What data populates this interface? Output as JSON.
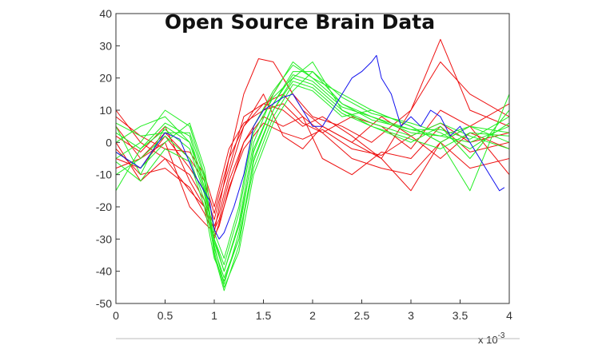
{
  "chart_data": {
    "type": "line",
    "title": "Open Source Brain Data",
    "xlabel": "",
    "ylabel": "",
    "x_multiplier_label": "x 10",
    "x_multiplier_exponent": "-3",
    "xlim": [
      0,
      4
    ],
    "ylim": [
      -50,
      40
    ],
    "x_ticks": [
      0,
      0.5,
      1,
      1.5,
      2,
      2.5,
      3,
      3.5,
      4
    ],
    "x_tick_labels": [
      "0",
      "0.5",
      "1",
      "1.5",
      "2",
      "2.5",
      "3",
      "3.5",
      "4"
    ],
    "y_ticks": [
      -50,
      -40,
      -30,
      -20,
      -10,
      0,
      10,
      20,
      30,
      40
    ],
    "y_tick_labels": [
      "-50",
      "-40",
      "-30",
      "-20",
      "-10",
      "0",
      "10",
      "20",
      "30",
      "40"
    ],
    "grid": false,
    "series_colors": {
      "red": "#ee1111",
      "green": "#22ee22",
      "blue": "#1111ee"
    },
    "series": [
      {
        "color": "red",
        "x": [
          0,
          0.25,
          0.5,
          0.75,
          0.9,
          1.0,
          1.05,
          1.15,
          1.3,
          1.5,
          1.7,
          1.9,
          2.1,
          2.4,
          2.7,
          3.0,
          3.3,
          3.6,
          4.0
        ],
        "y": [
          10,
          0,
          -5,
          -15,
          -20,
          -30,
          -25,
          -15,
          0,
          10,
          20,
          10,
          5,
          0,
          -5,
          10,
          32,
          10,
          5
        ]
      },
      {
        "color": "red",
        "x": [
          0,
          0.25,
          0.5,
          0.75,
          0.9,
          1.0,
          1.05,
          1.15,
          1.3,
          1.45,
          1.6,
          1.8,
          2.0,
          2.3,
          2.6,
          3.0,
          3.3,
          3.6,
          4.0
        ],
        "y": [
          5,
          -5,
          0,
          -20,
          -25,
          -28,
          -20,
          -5,
          15,
          26,
          25,
          15,
          8,
          5,
          0,
          10,
          25,
          15,
          8
        ]
      },
      {
        "color": "red",
        "x": [
          0,
          0.25,
          0.5,
          0.75,
          0.9,
          1.0,
          1.05,
          1.15,
          1.3,
          1.5,
          1.7,
          1.9,
          2.1,
          2.4,
          2.7,
          3.0,
          3.3,
          3.6,
          4.0
        ],
        "y": [
          0,
          -12,
          -5,
          -10,
          -18,
          -26,
          -22,
          -10,
          5,
          12,
          15,
          8,
          3,
          -5,
          -8,
          -10,
          0,
          5,
          -10
        ]
      },
      {
        "color": "red",
        "x": [
          0,
          0.25,
          0.5,
          0.75,
          0.9,
          1.0,
          1.05,
          1.15,
          1.3,
          1.5,
          1.7,
          1.9,
          2.1,
          2.4,
          2.7,
          3.0,
          3.3,
          3.6,
          4.0
        ],
        "y": [
          -5,
          -8,
          2,
          -8,
          -15,
          -24,
          -18,
          -8,
          8,
          12,
          10,
          5,
          8,
          2,
          -5,
          -15,
          0,
          -8,
          -5
        ]
      },
      {
        "color": "red",
        "x": [
          0,
          0.25,
          0.5,
          0.75,
          0.9,
          1.0,
          1.05,
          1.15,
          1.3,
          1.5,
          1.7,
          1.9,
          2.1,
          2.4,
          2.7,
          3.0,
          3.3,
          3.6,
          4.0
        ],
        "y": [
          2,
          -3,
          5,
          -12,
          -20,
          -27,
          -24,
          -12,
          0,
          8,
          5,
          8,
          -5,
          -10,
          -3,
          -5,
          5,
          -3,
          0
        ]
      },
      {
        "color": "red",
        "x": [
          0,
          0.25,
          0.5,
          0.75,
          0.9,
          1.0,
          1.05,
          1.15,
          1.3,
          1.5,
          1.7,
          1.9,
          2.1,
          2.4,
          2.7,
          3.0,
          3.3,
          3.6,
          4.0
        ],
        "y": [
          -8,
          -5,
          3,
          -5,
          -12,
          -22,
          -16,
          -5,
          5,
          15,
          2,
          -2,
          5,
          0,
          8,
          2,
          -5,
          3,
          -2
        ]
      },
      {
        "color": "red",
        "x": [
          0,
          0.25,
          0.5,
          0.75,
          0.9,
          1.0,
          1.05,
          1.15,
          1.3,
          1.5,
          1.7,
          1.9,
          2.1,
          2.4,
          2.7,
          3.0,
          3.3,
          3.6,
          4.0
        ],
        "y": [
          8,
          2,
          -2,
          -3,
          -10,
          -20,
          -14,
          -2,
          6,
          10,
          12,
          6,
          3,
          8,
          5,
          -2,
          10,
          5,
          12
        ]
      },
      {
        "color": "red",
        "x": [
          0,
          0.25,
          0.5,
          0.75,
          0.9,
          1.0,
          1.05,
          1.15,
          1.3,
          1.5,
          1.7,
          1.9,
          2.1,
          2.4,
          2.7,
          3.0,
          3.3,
          3.6,
          4.0
        ],
        "y": [
          -2,
          -10,
          -8,
          -14,
          -22,
          -29,
          -26,
          -14,
          -2,
          6,
          3,
          1,
          4,
          -2,
          -4,
          2,
          6,
          0,
          3
        ]
      },
      {
        "color": "green",
        "x": [
          0,
          0.25,
          0.5,
          0.75,
          0.9,
          1.0,
          1.1,
          1.25,
          1.4,
          1.6,
          1.8,
          2.0,
          2.3,
          2.6,
          3.0,
          3.3,
          3.6,
          4.0
        ],
        "y": [
          5,
          -10,
          5,
          0,
          -15,
          -30,
          -40,
          -25,
          0,
          15,
          25,
          20,
          15,
          10,
          5,
          0,
          -15,
          15
        ]
      },
      {
        "color": "green",
        "x": [
          0,
          0.25,
          0.5,
          0.75,
          0.9,
          1.0,
          1.1,
          1.25,
          1.4,
          1.6,
          1.8,
          2.0,
          2.3,
          2.6,
          3.0,
          3.3,
          3.6,
          4.0
        ],
        "y": [
          -5,
          0,
          10,
          5,
          -10,
          -35,
          -46,
          -32,
          -5,
          10,
          20,
          25,
          10,
          5,
          0,
          5,
          -5,
          10
        ]
      },
      {
        "color": "green",
        "x": [
          0,
          0.25,
          0.5,
          0.75,
          0.9,
          1.0,
          1.1,
          1.25,
          1.4,
          1.6,
          1.8,
          2.0,
          2.3,
          2.6,
          3.0,
          3.3,
          3.6,
          4.0
        ],
        "y": [
          0,
          5,
          8,
          0,
          -12,
          -32,
          -44,
          -28,
          -2,
          12,
          22,
          22,
          12,
          8,
          3,
          2,
          0,
          5
        ]
      },
      {
        "color": "green",
        "x": [
          0,
          0.25,
          0.5,
          0.75,
          0.9,
          1.0,
          1.1,
          1.25,
          1.4,
          1.6,
          1.8,
          2.0,
          2.3,
          2.6,
          3.0,
          3.3,
          3.6,
          4.0
        ],
        "y": [
          -10,
          -5,
          2,
          -5,
          -18,
          -33,
          -42,
          -30,
          -8,
          8,
          18,
          16,
          8,
          10,
          5,
          0,
          5,
          0
        ]
      },
      {
        "color": "green",
        "x": [
          0,
          0.25,
          0.5,
          0.75,
          0.9,
          1.0,
          1.1,
          1.25,
          1.4,
          1.6,
          1.8,
          2.0,
          2.3,
          2.6,
          3.0,
          3.3,
          3.6,
          4.0
        ],
        "y": [
          3,
          -2,
          6,
          2,
          -14,
          -30,
          -38,
          -22,
          3,
          14,
          20,
          18,
          10,
          6,
          2,
          6,
          2,
          -2
        ]
      },
      {
        "color": "green",
        "x": [
          0,
          0.25,
          0.5,
          0.75,
          0.9,
          1.0,
          1.1,
          1.25,
          1.4,
          1.6,
          1.8,
          2.0,
          2.3,
          2.6,
          3.0,
          3.3,
          3.6,
          4.0
        ],
        "y": [
          -3,
          -8,
          0,
          6,
          -8,
          -28,
          -36,
          -20,
          5,
          16,
          24,
          20,
          12,
          7,
          4,
          2,
          5,
          3
        ]
      },
      {
        "color": "green",
        "x": [
          0,
          0.25,
          0.5,
          0.75,
          0.9,
          1.0,
          1.1,
          1.25,
          1.4,
          1.6,
          1.8,
          2.0,
          2.3,
          2.6,
          3.0,
          3.3,
          3.6,
          4.0
        ],
        "y": [
          -15,
          -2,
          4,
          -2,
          -16,
          -34,
          -45,
          -34,
          -10,
          6,
          16,
          22,
          14,
          9,
          6,
          3,
          -2,
          6
        ]
      },
      {
        "color": "green",
        "x": [
          0,
          0.25,
          0.5,
          0.75,
          0.9,
          1.0,
          1.1,
          1.25,
          1.4,
          1.6,
          1.8,
          2.0,
          2.3,
          2.6,
          3.0,
          3.3,
          3.6,
          4.0
        ],
        "y": [
          6,
          2,
          3,
          3,
          -11,
          -31,
          -40,
          -26,
          -3,
          12,
          21,
          19,
          11,
          8,
          4,
          4,
          1,
          8
        ]
      },
      {
        "color": "green",
        "x": [
          0,
          0.25,
          0.5,
          0.75,
          0.9,
          1.0,
          1.1,
          1.25,
          1.4,
          1.6,
          1.8,
          2.0,
          2.3,
          2.6,
          3.0,
          3.3,
          3.6,
          4.0
        ],
        "y": [
          -6,
          -12,
          -2,
          -6,
          -20,
          -36,
          -43,
          -30,
          -6,
          10,
          19,
          17,
          9,
          5,
          1,
          -2,
          3,
          2
        ]
      },
      {
        "color": "blue",
        "x": [
          0,
          0.25,
          0.5,
          0.65,
          0.8,
          0.95,
          1.0,
          1.05,
          1.1,
          1.2,
          1.3,
          1.4,
          1.5,
          1.6,
          1.7,
          1.8,
          1.9,
          2.0,
          2.1,
          2.2,
          2.3,
          2.4,
          2.5,
          2.6,
          2.65,
          2.7,
          2.8,
          2.9,
          3.0,
          3.1,
          3.2,
          3.3,
          3.4,
          3.5,
          3.6,
          3.7,
          3.8,
          3.9,
          3.95
        ],
        "y": [
          -3,
          -8,
          3,
          1,
          -10,
          -18,
          -27,
          -30,
          -28,
          -20,
          -10,
          5,
          10,
          12,
          14,
          15,
          10,
          5,
          5,
          10,
          15,
          20,
          22,
          25,
          27,
          20,
          15,
          5,
          8,
          5,
          10,
          8,
          2,
          5,
          0,
          -5,
          -10,
          -15,
          -14
        ]
      }
    ]
  }
}
